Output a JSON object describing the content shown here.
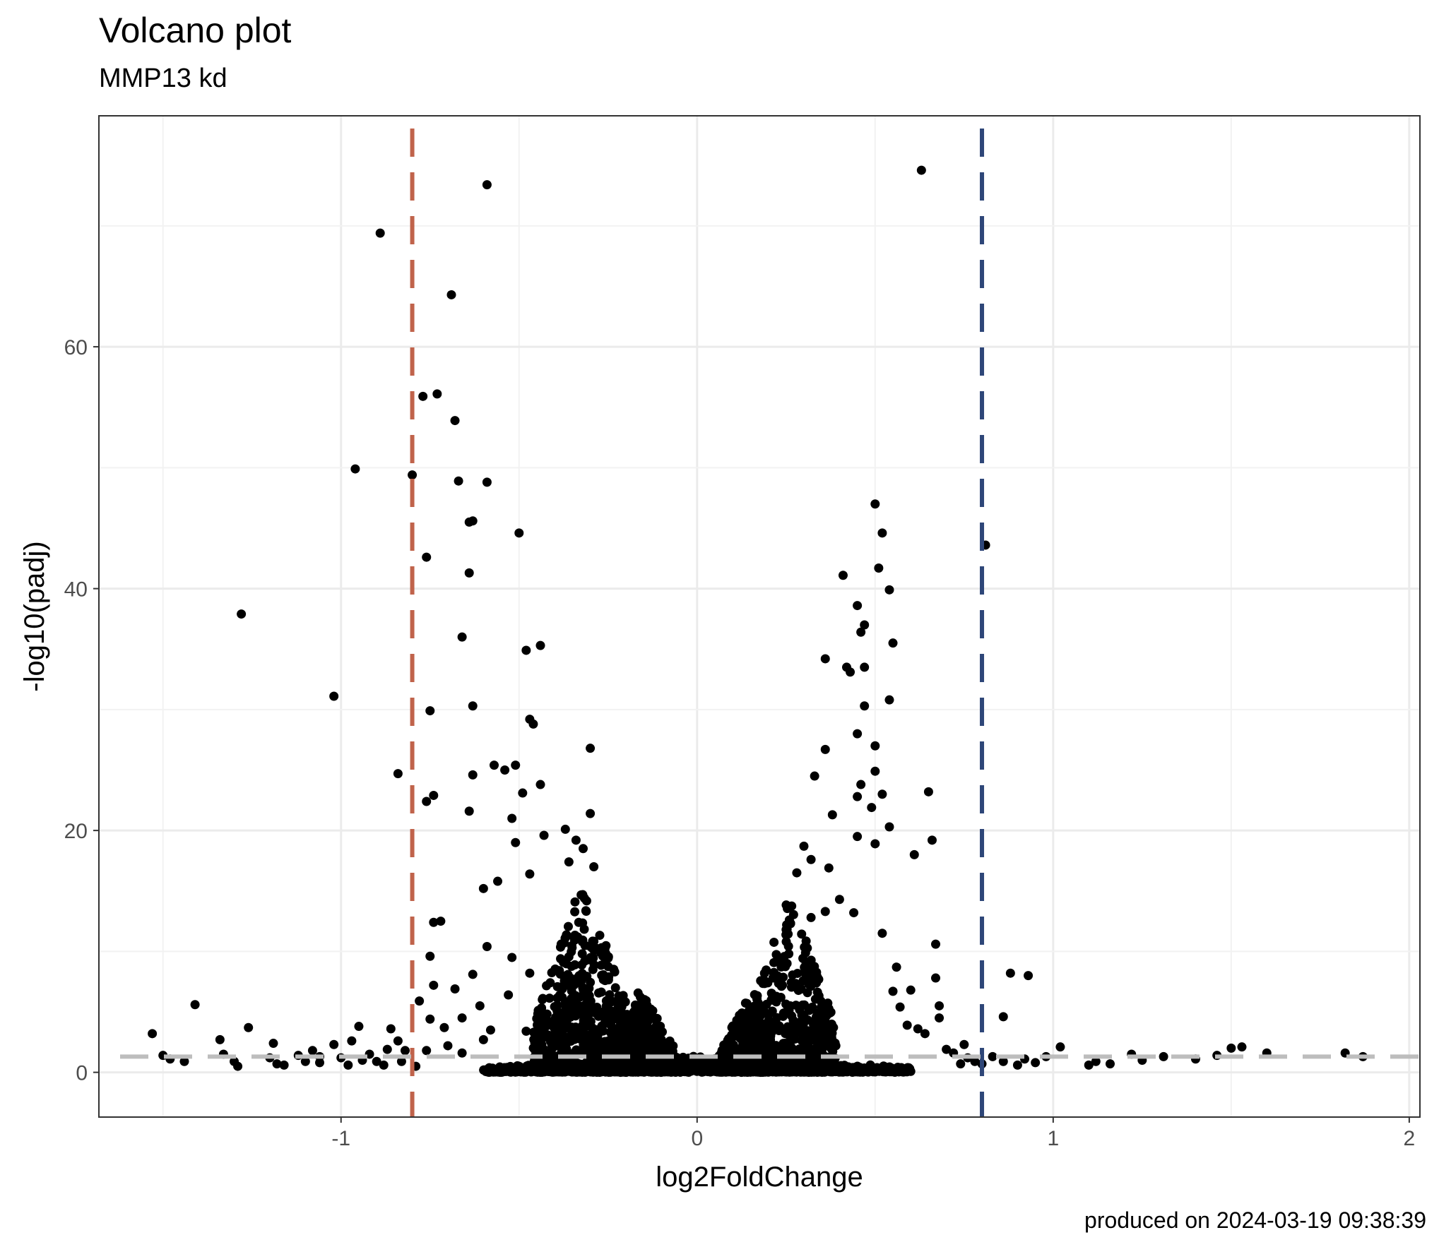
{
  "title": "Volcano plot",
  "subtitle": "MMP13 kd",
  "caption": "produced on 2024-03-19 09:38:39",
  "chart_data": {
    "type": "scatter",
    "xlabel": "log2FoldChange",
    "ylabel": "-log10(padj)",
    "xlim": [
      -1.68,
      2.03
    ],
    "ylim": [
      -3.7,
      79.1
    ],
    "x_ticks": [
      -1,
      0,
      1,
      2
    ],
    "x_tick_labels": [
      "-1",
      "0",
      "1",
      "2"
    ],
    "y_ticks": [
      0,
      20,
      40,
      60
    ],
    "y_tick_labels": [
      "0",
      "20",
      "40",
      "60"
    ],
    "grid": true,
    "legend": "none",
    "reference_lines": [
      {
        "orientation": "vertical",
        "value": -0.8,
        "style": "dashed",
        "color": "#c0634b"
      },
      {
        "orientation": "vertical",
        "value": 0.8,
        "style": "dashed",
        "color": "#2e4678"
      },
      {
        "orientation": "horizontal",
        "value": 1.3,
        "style": "dashed",
        "color": "#bdbdbd"
      }
    ],
    "point_color": "#000000",
    "points": [
      [
        0.63,
        74.6
      ],
      [
        -0.59,
        73.4
      ],
      [
        -0.89,
        69.4
      ],
      [
        -0.69,
        64.3
      ],
      [
        -0.73,
        56.1
      ],
      [
        -0.77,
        55.9
      ],
      [
        -0.68,
        53.9
      ],
      [
        -0.96,
        49.9
      ],
      [
        -0.8,
        49.4
      ],
      [
        -0.67,
        48.9
      ],
      [
        -0.59,
        48.8
      ],
      [
        0.5,
        47
      ],
      [
        -0.63,
        45.6
      ],
      [
        -0.64,
        45.5
      ],
      [
        -0.5,
        44.6
      ],
      [
        0.52,
        44.6
      ],
      [
        0.81,
        43.6
      ],
      [
        -0.76,
        42.6
      ],
      [
        0.51,
        41.7
      ],
      [
        -0.64,
        41.3
      ],
      [
        0.41,
        41.1
      ],
      [
        0.54,
        39.9
      ],
      [
        0.45,
        38.6
      ],
      [
        -1.28,
        37.9
      ],
      [
        0.47,
        37
      ],
      [
        0.46,
        36.4
      ],
      [
        -0.66,
        36
      ],
      [
        0.55,
        35.5
      ],
      [
        -0.44,
        35.3
      ],
      [
        -0.48,
        34.9
      ],
      [
        0.36,
        34.2
      ],
      [
        0.42,
        33.5
      ],
      [
        0.47,
        33.5
      ],
      [
        0.43,
        33.1
      ],
      [
        -1.02,
        31.1
      ],
      [
        0.54,
        30.8
      ],
      [
        0.47,
        30.3
      ],
      [
        -0.63,
        30.3
      ],
      [
        -0.75,
        29.9
      ],
      [
        -0.47,
        29.2
      ],
      [
        -0.46,
        28.8
      ],
      [
        0.45,
        28
      ],
      [
        0.5,
        27
      ],
      [
        -0.3,
        26.8
      ],
      [
        0.36,
        26.7
      ],
      [
        -0.84,
        24.7
      ],
      [
        0.5,
        24.9
      ],
      [
        0.33,
        24.5
      ],
      [
        -0.63,
        24.6
      ],
      [
        -0.57,
        25.4
      ],
      [
        -0.54,
        25
      ],
      [
        -0.51,
        25.4
      ],
      [
        0.46,
        23.8
      ],
      [
        -0.44,
        23.8
      ],
      [
        0.65,
        23.2
      ],
      [
        -0.49,
        23.1
      ],
      [
        0.52,
        23
      ],
      [
        0.45,
        22.8
      ],
      [
        -0.74,
        22.9
      ],
      [
        -0.76,
        22.4
      ],
      [
        0.49,
        21.9
      ],
      [
        -0.64,
        21.6
      ],
      [
        -0.3,
        21.4
      ],
      [
        0.38,
        21.3
      ],
      [
        -0.52,
        21
      ],
      [
        0.54,
        20.3
      ],
      [
        0.45,
        19.5
      ],
      [
        0.66,
        19.2
      ],
      [
        0.5,
        18.9
      ],
      [
        0.61,
        18
      ],
      [
        -0.51,
        19
      ],
      [
        -0.43,
        19.6
      ],
      [
        -0.37,
        20.1
      ],
      [
        -0.34,
        19.2
      ],
      [
        -0.32,
        18.5
      ],
      [
        -0.36,
        17.4
      ],
      [
        -0.47,
        16.4
      ],
      [
        -0.56,
        15.8
      ],
      [
        -0.6,
        15.2
      ],
      [
        -0.29,
        17
      ],
      [
        0.3,
        18.7
      ],
      [
        0.32,
        17.6
      ],
      [
        0.28,
        16.5
      ],
      [
        0.37,
        16.9
      ],
      [
        0.4,
        14.3
      ],
      [
        0.44,
        13.2
      ],
      [
        0.36,
        13.3
      ],
      [
        0.32,
        12.8
      ],
      [
        0.52,
        11.5
      ],
      [
        0.25,
        11.8
      ],
      [
        -0.72,
        12.5
      ],
      [
        -0.74,
        12.4
      ],
      [
        -0.59,
        10.4
      ],
      [
        -0.75,
        9.6
      ],
      [
        -0.52,
        9.5
      ],
      [
        -0.47,
        8.2
      ],
      [
        -0.63,
        8.1
      ],
      [
        -0.74,
        7.2
      ],
      [
        -0.78,
        5.9
      ],
      [
        -0.68,
        6.9
      ],
      [
        -0.61,
        5.5
      ],
      [
        -0.53,
        6.4
      ],
      [
        -0.66,
        4.5
      ],
      [
        -0.75,
        4.4
      ],
      [
        -0.58,
        3.5
      ],
      [
        -0.71,
        3.7
      ],
      [
        -0.48,
        3.4
      ],
      [
        0.88,
        8.2
      ],
      [
        0.93,
        8
      ],
      [
        0.86,
        4.6
      ],
      [
        0.67,
        10.6
      ],
      [
        0.67,
        7.8
      ],
      [
        0.6,
        6.8
      ],
      [
        0.68,
        5.5
      ],
      [
        0.68,
        4.5
      ],
      [
        0.56,
        8.7
      ],
      [
        0.55,
        6.7
      ],
      [
        0.57,
        5.4
      ],
      [
        0.59,
        3.9
      ],
      [
        0.62,
        3.6
      ],
      [
        0.64,
        3.2
      ],
      [
        0.7,
        1.9
      ],
      [
        0.75,
        2.3
      ],
      [
        0.72,
        1.6
      ],
      [
        -1.41,
        5.6
      ],
      [
        -1.26,
        3.7
      ],
      [
        -1.34,
        2.7
      ],
      [
        -1.33,
        1.5
      ],
      [
        -1.5,
        1.4
      ],
      [
        -1.53,
        3.2
      ],
      [
        -1.48,
        1.1
      ],
      [
        -1.44,
        0.9
      ],
      [
        -1.3,
        0.9
      ],
      [
        -1.29,
        0.5
      ],
      [
        -1.19,
        2.4
      ],
      [
        -1.18,
        0.7
      ],
      [
        -1.2,
        1.2
      ],
      [
        -1.12,
        1.4
      ],
      [
        -1.08,
        1.8
      ],
      [
        -1.06,
        1.3
      ],
      [
        -1.02,
        2.3
      ],
      [
        -1.0,
        1.2
      ],
      [
        -0.97,
        2.6
      ],
      [
        -0.95,
        3.8
      ],
      [
        -0.92,
        1.5
      ],
      [
        -0.9,
        0.9
      ],
      [
        -0.87,
        1.9
      ],
      [
        -0.86,
        3.6
      ],
      [
        -0.84,
        2.6
      ],
      [
        -0.82,
        1.8
      ],
      [
        -0.76,
        1.8
      ],
      [
        -0.7,
        2.2
      ],
      [
        -0.66,
        1.6
      ],
      [
        -0.6,
        2.7
      ],
      [
        1.02,
        2.1
      ],
      [
        1.1,
        0.6
      ],
      [
        1.12,
        0.9
      ],
      [
        1.22,
        1.5
      ],
      [
        1.25,
        1.0
      ],
      [
        1.31,
        1.3
      ],
      [
        1.4,
        1.1
      ],
      [
        1.46,
        1.4
      ],
      [
        1.5,
        2.0
      ],
      [
        1.53,
        2.1
      ],
      [
        1.6,
        1.6
      ],
      [
        1.82,
        1.6
      ],
      [
        1.87,
        1.3
      ],
      [
        0.95,
        0.8
      ],
      [
        0.92,
        1.1
      ],
      [
        0.9,
        0.6
      ],
      [
        0.98,
        1.3
      ],
      [
        1.16,
        0.7
      ],
      [
        0.83,
        1.3
      ],
      [
        0.78,
        0.9
      ],
      [
        0.76,
        1.2
      ],
      [
        0.74,
        0.7
      ],
      [
        -1.16,
        0.6
      ],
      [
        -1.1,
        0.9
      ],
      [
        -1.06,
        0.8
      ],
      [
        -0.98,
        0.6
      ],
      [
        -0.94,
        1.0
      ],
      [
        -0.88,
        0.6
      ],
      [
        -0.83,
        0.9
      ],
      [
        -0.79,
        0.5
      ],
      [
        0.86,
        0.9
      ],
      [
        0.8,
        0.7
      ]
    ],
    "clusters": [
      {
        "center": -0.32,
        "width": 0.14,
        "ymax": 16,
        "n": 650,
        "seed": 11
      },
      {
        "center": -0.16,
        "width": 0.1,
        "ymax": 7,
        "n": 500,
        "seed": 23
      },
      {
        "center": 0.26,
        "width": 0.13,
        "ymax": 15,
        "n": 600,
        "seed": 37
      },
      {
        "center": 0.14,
        "width": 0.08,
        "ymax": 6,
        "n": 450,
        "seed": 41
      },
      {
        "center": 0.0,
        "width": 0.6,
        "ymax": 1.3,
        "n": 1300,
        "seed": 53
      }
    ]
  }
}
